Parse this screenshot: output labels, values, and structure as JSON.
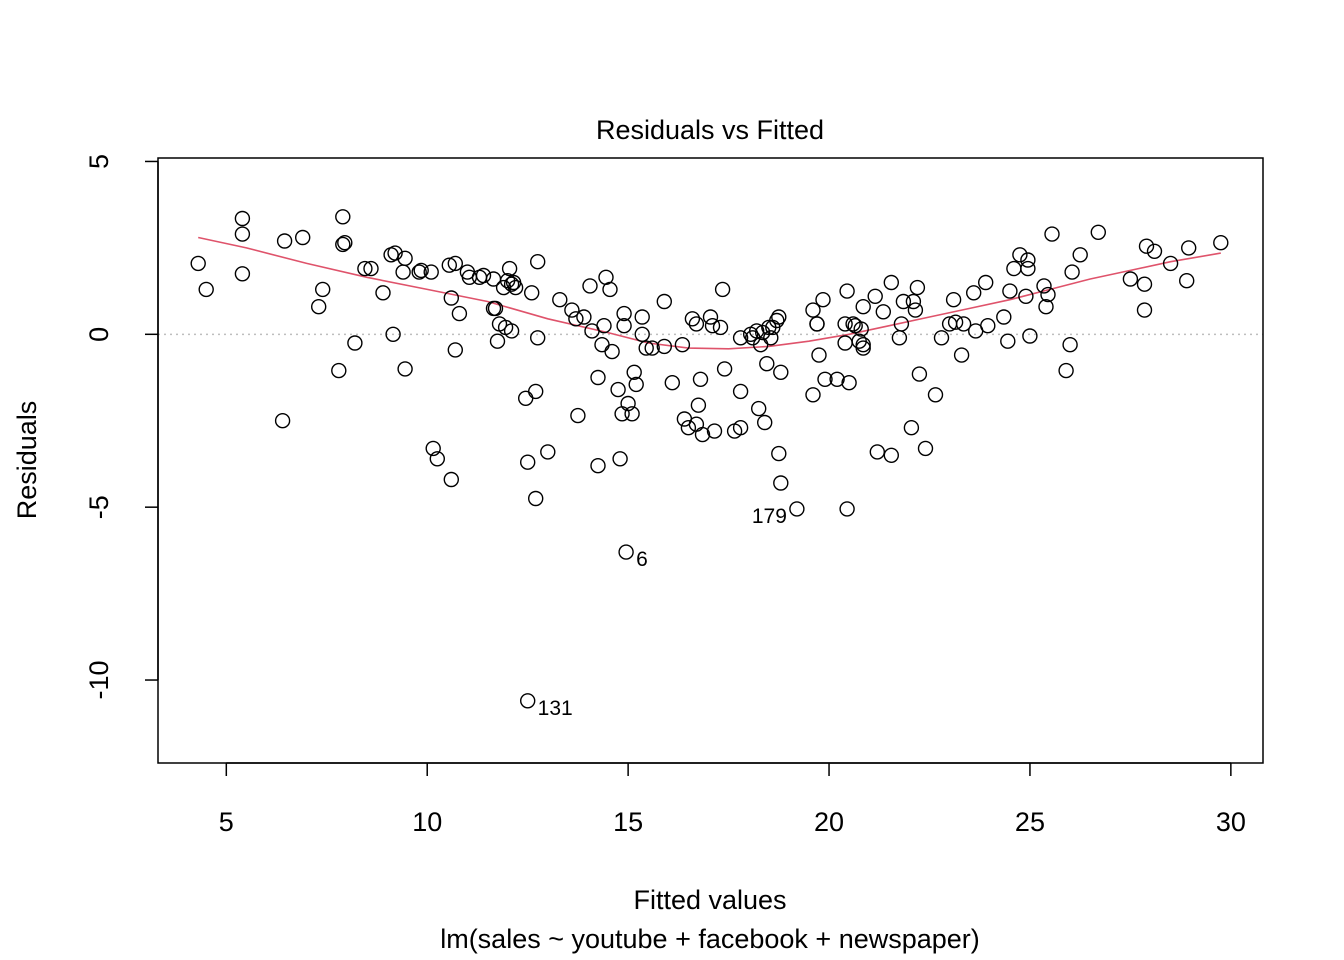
{
  "chart_data": {
    "type": "scatter",
    "title": "Residuals vs Fitted",
    "xlabel": "Fitted values",
    "subtitle": "lm(sales ~ youtube + facebook + newspaper)",
    "ylabel": "Residuals",
    "xlim": [
      3.3,
      30.8
    ],
    "ylim": [
      -12.4,
      5.1
    ],
    "x_ticks": [
      5,
      10,
      15,
      20,
      25,
      30
    ],
    "y_ticks": [
      5,
      0,
      -5,
      -10
    ],
    "x_tick_labels": [
      "5",
      "10",
      "15",
      "20",
      "25",
      "30"
    ],
    "y_tick_labels": [
      "5",
      "0",
      "-5",
      "-10"
    ],
    "reference_line": {
      "y": 0,
      "style": "dotted",
      "color": "#bebebe"
    },
    "smooth_color": "#DF536B",
    "point_color": "#000000",
    "grid": false,
    "legend": "none",
    "points": [
      [
        4.3,
        2.05
      ],
      [
        4.5,
        1.3
      ],
      [
        5.4,
        3.35
      ],
      [
        5.4,
        2.9
      ],
      [
        5.4,
        1.75
      ],
      [
        6.4,
        -2.5
      ],
      [
        6.45,
        2.7
      ],
      [
        6.9,
        2.8
      ],
      [
        7.3,
        0.8
      ],
      [
        7.4,
        1.3
      ],
      [
        7.8,
        -1.05
      ],
      [
        7.9,
        2.6
      ],
      [
        7.9,
        3.4
      ],
      [
        7.95,
        2.65
      ],
      [
        8.2,
        -0.25
      ],
      [
        8.45,
        1.9
      ],
      [
        8.6,
        1.9
      ],
      [
        8.9,
        1.2
      ],
      [
        9.1,
        2.3
      ],
      [
        9.15,
        0.0
      ],
      [
        9.2,
        2.35
      ],
      [
        9.4,
        1.8
      ],
      [
        9.45,
        -1.0
      ],
      [
        9.45,
        2.2
      ],
      [
        9.8,
        1.8
      ],
      [
        9.85,
        1.85
      ],
      [
        10.1,
        1.8
      ],
      [
        10.15,
        -3.3
      ],
      [
        10.25,
        -3.6
      ],
      [
        10.55,
        2.0
      ],
      [
        10.6,
        -4.2
      ],
      [
        10.6,
        1.05
      ],
      [
        10.7,
        -0.45
      ],
      [
        10.7,
        2.05
      ],
      [
        10.8,
        0.6
      ],
      [
        11.0,
        1.8
      ],
      [
        11.05,
        1.65
      ],
      [
        11.3,
        1.65
      ],
      [
        11.4,
        1.7
      ],
      [
        11.65,
        1.6
      ],
      [
        11.65,
        0.75
      ],
      [
        11.7,
        0.75
      ],
      [
        11.75,
        -0.2
      ],
      [
        11.8,
        0.3
      ],
      [
        11.9,
        1.35
      ],
      [
        11.95,
        0.2
      ],
      [
        12.0,
        1.55
      ],
      [
        12.05,
        1.9
      ],
      [
        12.1,
        1.45
      ],
      [
        12.1,
        0.1
      ],
      [
        12.15,
        1.5
      ],
      [
        12.2,
        1.35
      ],
      [
        12.45,
        -1.85
      ],
      [
        12.5,
        -3.7
      ],
      [
        12.5,
        -10.6
      ],
      [
        12.6,
        1.2
      ],
      [
        12.7,
        -4.75
      ],
      [
        12.7,
        -1.65
      ],
      [
        12.75,
        -0.1
      ],
      [
        12.75,
        2.1
      ],
      [
        13.0,
        -3.4
      ],
      [
        13.3,
        1.0
      ],
      [
        13.6,
        0.7
      ],
      [
        13.7,
        0.45
      ],
      [
        13.75,
        -2.35
      ],
      [
        13.9,
        0.5
      ],
      [
        14.05,
        1.4
      ],
      [
        14.1,
        0.1
      ],
      [
        14.25,
        -1.25
      ],
      [
        14.25,
        -3.8
      ],
      [
        14.35,
        -0.3
      ],
      [
        14.4,
        0.25
      ],
      [
        14.45,
        1.65
      ],
      [
        14.55,
        1.3
      ],
      [
        14.6,
        -0.5
      ],
      [
        14.75,
        -1.6
      ],
      [
        14.8,
        -3.6
      ],
      [
        14.85,
        -2.3
      ],
      [
        14.9,
        0.25
      ],
      [
        14.9,
        0.6
      ],
      [
        14.95,
        -6.3
      ],
      [
        15.0,
        -2.0
      ],
      [
        15.1,
        -2.3
      ],
      [
        15.15,
        -1.1
      ],
      [
        15.2,
        -1.45
      ],
      [
        15.35,
        0.0
      ],
      [
        15.35,
        0.5
      ],
      [
        15.45,
        -0.4
      ],
      [
        15.6,
        -0.4
      ],
      [
        15.9,
        -0.35
      ],
      [
        15.9,
        0.95
      ],
      [
        16.1,
        -1.4
      ],
      [
        16.35,
        -0.3
      ],
      [
        16.4,
        -2.45
      ],
      [
        16.5,
        -2.7
      ],
      [
        16.6,
        0.45
      ],
      [
        16.7,
        -2.6
      ],
      [
        16.7,
        0.3
      ],
      [
        16.75,
        -2.05
      ],
      [
        16.8,
        -1.3
      ],
      [
        16.85,
        -2.9
      ],
      [
        17.05,
        0.5
      ],
      [
        17.1,
        0.25
      ],
      [
        17.15,
        -2.8
      ],
      [
        17.3,
        0.2
      ],
      [
        17.35,
        1.3
      ],
      [
        17.4,
        -1.0
      ],
      [
        17.65,
        -2.8
      ],
      [
        17.8,
        -2.7
      ],
      [
        17.8,
        -1.65
      ],
      [
        17.8,
        -0.1
      ],
      [
        18.05,
        0.0
      ],
      [
        18.1,
        -0.1
      ],
      [
        18.2,
        0.1
      ],
      [
        18.25,
        -2.15
      ],
      [
        18.3,
        -0.3
      ],
      [
        18.35,
        0.05
      ],
      [
        18.4,
        -2.55
      ],
      [
        18.45,
        -0.85
      ],
      [
        18.5,
        0.2
      ],
      [
        18.55,
        -0.1
      ],
      [
        18.6,
        0.2
      ],
      [
        18.7,
        0.4
      ],
      [
        18.75,
        0.5
      ],
      [
        18.75,
        -3.45
      ],
      [
        18.8,
        -4.3
      ],
      [
        18.8,
        -1.1
      ],
      [
        19.2,
        -5.05
      ],
      [
        19.6,
        -1.75
      ],
      [
        19.6,
        0.7
      ],
      [
        19.7,
        0.3
      ],
      [
        19.7,
        0.3
      ],
      [
        19.75,
        -0.6
      ],
      [
        19.85,
        1.0
      ],
      [
        19.9,
        -1.3
      ],
      [
        20.2,
        -1.3
      ],
      [
        20.4,
        -0.25
      ],
      [
        20.4,
        0.3
      ],
      [
        20.45,
        1.25
      ],
      [
        20.45,
        -5.05
      ],
      [
        20.5,
        -1.4
      ],
      [
        20.6,
        0.3
      ],
      [
        20.65,
        0.25
      ],
      [
        20.75,
        -0.2
      ],
      [
        20.8,
        0.15
      ],
      [
        20.85,
        -0.4
      ],
      [
        20.85,
        0.8
      ],
      [
        20.85,
        -0.3
      ],
      [
        21.15,
        1.1
      ],
      [
        21.2,
        -3.4
      ],
      [
        21.35,
        0.65
      ],
      [
        21.55,
        -3.5
      ],
      [
        21.55,
        1.5
      ],
      [
        21.75,
        -0.1
      ],
      [
        21.8,
        0.3
      ],
      [
        21.85,
        0.95
      ],
      [
        22.05,
        -2.7
      ],
      [
        22.1,
        0.95
      ],
      [
        22.15,
        0.7
      ],
      [
        22.2,
        1.35
      ],
      [
        22.25,
        -1.15
      ],
      [
        22.4,
        -3.3
      ],
      [
        22.65,
        -1.75
      ],
      [
        22.8,
        -0.1
      ],
      [
        23.0,
        0.3
      ],
      [
        23.1,
        1.0
      ],
      [
        23.15,
        0.35
      ],
      [
        23.3,
        -0.6
      ],
      [
        23.35,
        0.3
      ],
      [
        23.6,
        1.2
      ],
      [
        23.65,
        0.1
      ],
      [
        23.9,
        1.5
      ],
      [
        23.95,
        0.25
      ],
      [
        24.35,
        0.5
      ],
      [
        24.45,
        -0.2
      ],
      [
        24.5,
        1.25
      ],
      [
        24.6,
        1.9
      ],
      [
        24.75,
        2.3
      ],
      [
        24.9,
        1.1
      ],
      [
        24.95,
        1.9
      ],
      [
        24.95,
        2.15
      ],
      [
        25.0,
        -0.05
      ],
      [
        25.35,
        1.4
      ],
      [
        25.4,
        0.8
      ],
      [
        25.45,
        1.15
      ],
      [
        25.55,
        2.9
      ],
      [
        25.9,
        -1.05
      ],
      [
        26.0,
        -0.3
      ],
      [
        26.05,
        1.8
      ],
      [
        26.25,
        2.3
      ],
      [
        26.7,
        2.95
      ],
      [
        27.5,
        1.6
      ],
      [
        27.85,
        0.7
      ],
      [
        27.85,
        1.45
      ],
      [
        27.9,
        2.55
      ],
      [
        28.1,
        2.4
      ],
      [
        28.5,
        2.05
      ],
      [
        28.9,
        1.55
      ],
      [
        28.95,
        2.5
      ],
      [
        29.75,
        2.65
      ]
    ],
    "point_labels": [
      {
        "text": "131",
        "x": 12.5,
        "y": -10.6,
        "side": "right"
      },
      {
        "text": "6",
        "x": 14.95,
        "y": -6.3,
        "side": "right"
      },
      {
        "text": "179",
        "x": 19.2,
        "y": -5.05,
        "side": "left"
      }
    ],
    "smooth_line": [
      [
        4.3,
        2.8
      ],
      [
        5.5,
        2.5
      ],
      [
        7,
        2.05
      ],
      [
        8.5,
        1.65
      ],
      [
        10,
        1.3
      ],
      [
        11.5,
        0.95
      ],
      [
        13,
        0.45
      ],
      [
        14.5,
        0.05
      ],
      [
        15.5,
        -0.25
      ],
      [
        16.5,
        -0.4
      ],
      [
        17.5,
        -0.42
      ],
      [
        18.5,
        -0.35
      ],
      [
        19.5,
        -0.2
      ],
      [
        20.5,
        0.0
      ],
      [
        21.5,
        0.25
      ],
      [
        22.5,
        0.5
      ],
      [
        23.5,
        0.75
      ],
      [
        24.5,
        1.0
      ],
      [
        25.5,
        1.3
      ],
      [
        26.5,
        1.6
      ],
      [
        27.5,
        1.85
      ],
      [
        28.5,
        2.1
      ],
      [
        29.75,
        2.35
      ]
    ]
  }
}
